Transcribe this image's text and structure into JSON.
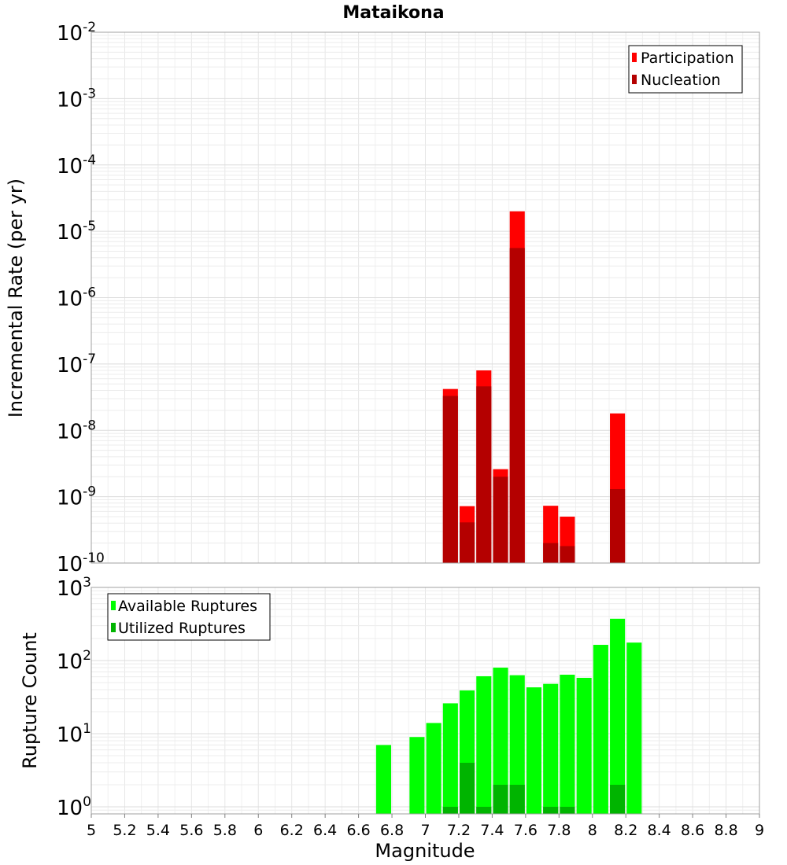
{
  "chart_data": [
    {
      "type": "bar",
      "title": "Mataikona",
      "xlabel": "",
      "ylabel": "Incremental Rate (per yr)",
      "yscale": "log",
      "ylim": [
        1e-10,
        0.01
      ],
      "xlim": [
        5,
        9
      ],
      "y_ticks": [
        {
          "base": "10",
          "exp": "-2",
          "value": 0.01
        },
        {
          "base": "10",
          "exp": "-3",
          "value": 0.001
        },
        {
          "base": "10",
          "exp": "-4",
          "value": 0.0001
        },
        {
          "base": "10",
          "exp": "-5",
          "value": 1e-05
        },
        {
          "base": "10",
          "exp": "-6",
          "value": 1e-06
        },
        {
          "base": "10",
          "exp": "-7",
          "value": 1e-07
        },
        {
          "base": "10",
          "exp": "-8",
          "value": 1e-08
        },
        {
          "base": "10",
          "exp": "-9",
          "value": 1e-09
        },
        {
          "base": "10",
          "exp": "-10",
          "value": 1e-10
        }
      ],
      "legend_position": "top-right",
      "grid": true,
      "bar_width": 0.09,
      "series": [
        {
          "name": "Participation",
          "color": "#ff0000",
          "x": [
            7.15,
            7.25,
            7.35,
            7.45,
            7.55,
            7.75,
            7.85,
            8.15
          ],
          "values": [
            4.2e-08,
            7.2e-10,
            8e-08,
            2.6e-09,
            2e-05,
            7.3e-10,
            5e-10,
            1.8e-08
          ]
        },
        {
          "name": "Nucleation",
          "color": "#b40000",
          "x": [
            7.15,
            7.25,
            7.35,
            7.45,
            7.55,
            7.75,
            7.85,
            8.15
          ],
          "values": [
            3.3e-08,
            4.1e-10,
            4.6e-08,
            2e-09,
            5.6e-06,
            2e-10,
            1.8e-10,
            1.3e-09
          ]
        }
      ]
    },
    {
      "type": "bar",
      "title": "",
      "xlabel": "Magnitude",
      "ylabel": "Rupture Count",
      "yscale": "log",
      "ylim": [
        0.8,
        1000
      ],
      "xlim": [
        5,
        9
      ],
      "y_ticks": [
        {
          "base": "10",
          "exp": "3",
          "value": 1000
        },
        {
          "base": "10",
          "exp": "2",
          "value": 100
        },
        {
          "base": "10",
          "exp": "1",
          "value": 10
        },
        {
          "base": "10",
          "exp": "0",
          "value": 1
        }
      ],
      "x_tick_labels": [
        "5",
        "5.2",
        "5.4",
        "5.6",
        "5.8",
        "6",
        "6.2",
        "6.4",
        "6.6",
        "6.8",
        "7",
        "7.2",
        "7.4",
        "7.6",
        "7.8",
        "8",
        "8.2",
        "8.4",
        "8.6",
        "8.8",
        "9"
      ],
      "legend_position": "top-left",
      "grid": true,
      "bar_width": 0.09,
      "series": [
        {
          "name": "Available Ruptures",
          "color": "#00ff00",
          "x": [
            6.75,
            6.95,
            7.05,
            7.15,
            7.25,
            7.35,
            7.45,
            7.55,
            7.65,
            7.75,
            7.85,
            7.95,
            8.05,
            8.15,
            8.25
          ],
          "values": [
            7,
            9,
            14,
            26,
            39,
            61,
            80,
            63,
            43,
            48,
            64,
            58,
            164,
            373,
            176
          ]
        },
        {
          "name": "Utilized Ruptures",
          "color": "#00b400",
          "x": [
            7.15,
            7.25,
            7.35,
            7.45,
            7.55,
            7.75,
            7.85,
            8.15
          ],
          "values": [
            1,
            4,
            1,
            2,
            2,
            1,
            1,
            2
          ]
        }
      ]
    }
  ]
}
